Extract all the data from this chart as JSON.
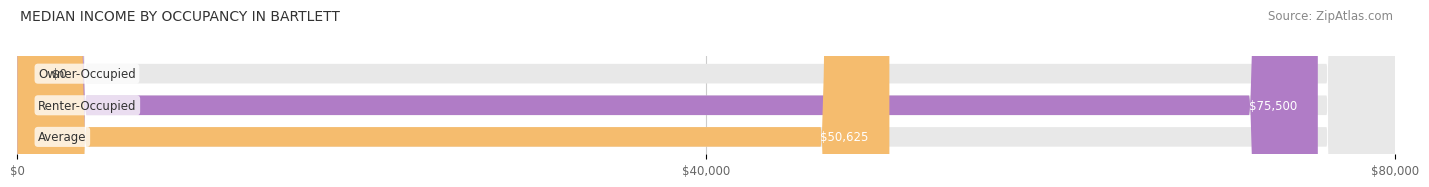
{
  "title": "MEDIAN INCOME BY OCCUPANCY IN BARTLETT",
  "source": "Source: ZipAtlas.com",
  "categories": [
    "Owner-Occupied",
    "Renter-Occupied",
    "Average"
  ],
  "values": [
    0,
    75500,
    50625
  ],
  "bar_colors": [
    "#5bc8c8",
    "#b07cc6",
    "#f5bc6e"
  ],
  "bar_labels": [
    "$0",
    "$75,500",
    "$50,625"
  ],
  "xlim": [
    0,
    80000
  ],
  "xticks": [
    0,
    40000,
    80000
  ],
  "xtick_labels": [
    "$0",
    "$40,000",
    "$80,000"
  ],
  "bar_bg_color": "#e8e8e8",
  "title_fontsize": 10,
  "source_fontsize": 8.5,
  "label_fontsize": 8.5,
  "tick_fontsize": 8.5
}
